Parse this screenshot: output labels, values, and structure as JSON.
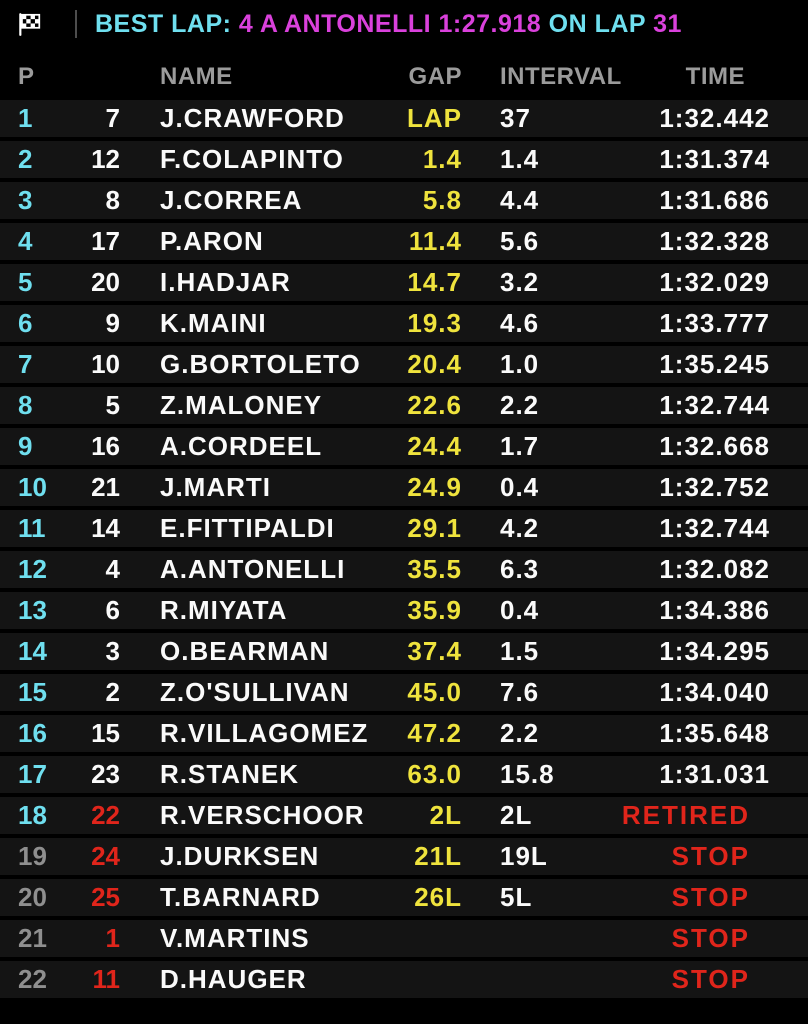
{
  "banner": {
    "flag_icon": "checkered-flag",
    "segments": [
      {
        "text": "BEST LAP: ",
        "color": "cyan"
      },
      {
        "text": "4 A ANTONELLI 1:27.918",
        "color": "magenta"
      },
      {
        "text": " ON LAP ",
        "color": "cyan"
      },
      {
        "text": "31",
        "color": "magenta"
      }
    ]
  },
  "columns": {
    "p": "P",
    "name": "NAME",
    "gap": "GAP",
    "interval": "INTERVAL",
    "time": "TIME"
  },
  "colors": {
    "cyan": "#6FDFEF",
    "magenta": "#DA41DC",
    "yellow": "#EFE33D",
    "red": "#E0251B",
    "headGray": "#9B9B9B",
    "posGray": "#8F8F8F",
    "rowBg": "#141414",
    "white": "#FAFAFA"
  },
  "rows": [
    {
      "pos": "1",
      "pos_color": "cyan",
      "num": "7",
      "num_color": "white",
      "name": "J.CRAWFORD",
      "gap": "LAP",
      "interval": "37",
      "time": "1:32.442",
      "time_color": "white",
      "status": false
    },
    {
      "pos": "2",
      "pos_color": "cyan",
      "num": "12",
      "num_color": "white",
      "name": "F.COLAPINTO",
      "gap": "1.4",
      "interval": "1.4",
      "time": "1:31.374",
      "time_color": "white",
      "status": false
    },
    {
      "pos": "3",
      "pos_color": "cyan",
      "num": "8",
      "num_color": "white",
      "name": "J.CORREA",
      "gap": "5.8",
      "interval": "4.4",
      "time": "1:31.686",
      "time_color": "white",
      "status": false
    },
    {
      "pos": "4",
      "pos_color": "cyan",
      "num": "17",
      "num_color": "white",
      "name": "P.ARON",
      "gap": "11.4",
      "interval": "5.6",
      "time": "1:32.328",
      "time_color": "white",
      "status": false
    },
    {
      "pos": "5",
      "pos_color": "cyan",
      "num": "20",
      "num_color": "white",
      "name": "I.HADJAR",
      "gap": "14.7",
      "interval": "3.2",
      "time": "1:32.029",
      "time_color": "white",
      "status": false
    },
    {
      "pos": "6",
      "pos_color": "cyan",
      "num": "9",
      "num_color": "white",
      "name": "K.MAINI",
      "gap": "19.3",
      "interval": "4.6",
      "time": "1:33.777",
      "time_color": "white",
      "status": false
    },
    {
      "pos": "7",
      "pos_color": "cyan",
      "num": "10",
      "num_color": "white",
      "name": "G.BORTOLETO",
      "gap": "20.4",
      "interval": "1.0",
      "time": "1:35.245",
      "time_color": "white",
      "status": false
    },
    {
      "pos": "8",
      "pos_color": "cyan",
      "num": "5",
      "num_color": "white",
      "name": "Z.MALONEY",
      "gap": "22.6",
      "interval": "2.2",
      "time": "1:32.744",
      "time_color": "white",
      "status": false
    },
    {
      "pos": "9",
      "pos_color": "cyan",
      "num": "16",
      "num_color": "white",
      "name": "A.CORDEEL",
      "gap": "24.4",
      "interval": "1.7",
      "time": "1:32.668",
      "time_color": "white",
      "status": false
    },
    {
      "pos": "10",
      "pos_color": "cyan",
      "num": "21",
      "num_color": "white",
      "name": "J.MARTI",
      "gap": "24.9",
      "interval": "0.4",
      "time": "1:32.752",
      "time_color": "white",
      "status": false
    },
    {
      "pos": "11",
      "pos_color": "cyan",
      "num": "14",
      "num_color": "white",
      "name": "E.FITTIPALDI",
      "gap": "29.1",
      "interval": "4.2",
      "time": "1:32.744",
      "time_color": "white",
      "status": false
    },
    {
      "pos": "12",
      "pos_color": "cyan",
      "num": "4",
      "num_color": "white",
      "name": "A.ANTONELLI",
      "gap": "35.5",
      "interval": "6.3",
      "time": "1:32.082",
      "time_color": "white",
      "status": false
    },
    {
      "pos": "13",
      "pos_color": "cyan",
      "num": "6",
      "num_color": "white",
      "name": "R.MIYATA",
      "gap": "35.9",
      "interval": "0.4",
      "time": "1:34.386",
      "time_color": "white",
      "status": false
    },
    {
      "pos": "14",
      "pos_color": "cyan",
      "num": "3",
      "num_color": "white",
      "name": "O.BEARMAN",
      "gap": "37.4",
      "interval": "1.5",
      "time": "1:34.295",
      "time_color": "white",
      "status": false
    },
    {
      "pos": "15",
      "pos_color": "cyan",
      "num": "2",
      "num_color": "white",
      "name": "Z.O'SULLIVAN",
      "gap": "45.0",
      "interval": "7.6",
      "time": "1:34.040",
      "time_color": "white",
      "status": false
    },
    {
      "pos": "16",
      "pos_color": "cyan",
      "num": "15",
      "num_color": "white",
      "name": "R.VILLAGOMEZ",
      "gap": "47.2",
      "interval": "2.2",
      "time": "1:35.648",
      "time_color": "white",
      "status": false
    },
    {
      "pos": "17",
      "pos_color": "cyan",
      "num": "23",
      "num_color": "white",
      "name": "R.STANEK",
      "gap": "63.0",
      "interval": "15.8",
      "time": "1:31.031",
      "time_color": "white",
      "status": false
    },
    {
      "pos": "18",
      "pos_color": "cyan",
      "num": "22",
      "num_color": "red",
      "name": "R.VERSCHOOR",
      "gap": "2L",
      "interval": "2L",
      "time": "RETIRED",
      "time_color": "red",
      "status": true
    },
    {
      "pos": "19",
      "pos_color": "gray",
      "num": "24",
      "num_color": "red",
      "name": "J.DURKSEN",
      "gap": "21L",
      "interval": "19L",
      "time": "STOP",
      "time_color": "red",
      "status": true
    },
    {
      "pos": "20",
      "pos_color": "gray",
      "num": "25",
      "num_color": "red",
      "name": "T.BARNARD",
      "gap": "26L",
      "interval": "5L",
      "time": "STOP",
      "time_color": "red",
      "status": true
    },
    {
      "pos": "21",
      "pos_color": "gray",
      "num": "1",
      "num_color": "red",
      "name": "V.MARTINS",
      "gap": "",
      "interval": "",
      "time": "STOP",
      "time_color": "red",
      "status": true
    },
    {
      "pos": "22",
      "pos_color": "gray",
      "num": "11",
      "num_color": "red",
      "name": "D.HAUGER",
      "gap": "",
      "interval": "",
      "time": "STOP",
      "time_color": "red",
      "status": true
    }
  ]
}
